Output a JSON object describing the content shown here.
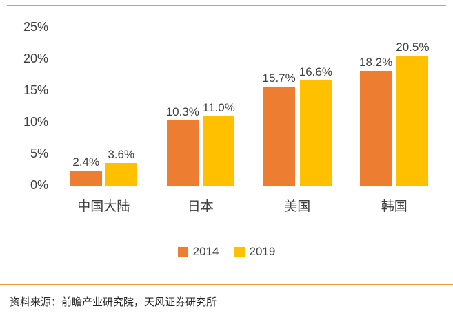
{
  "chart_data": {
    "type": "bar",
    "title": "",
    "categories": [
      "中国大陆",
      "日本",
      "美国",
      "韩国"
    ],
    "series": [
      {
        "name": "2014",
        "color": "#ED7D31",
        "values": [
          2.4,
          10.3,
          15.7,
          18.2
        ],
        "labels": [
          "2.4%",
          "10.3%",
          "15.7%",
          "18.2%"
        ]
      },
      {
        "name": "2019",
        "color": "#FFC000",
        "values": [
          3.6,
          11.0,
          16.6,
          20.5
        ],
        "labels": [
          "3.6%",
          "11.0%",
          "16.6%",
          "20.5%"
        ]
      }
    ],
    "xlabel": "",
    "ylabel": "",
    "ylim": [
      0,
      25
    ],
    "yticks": [
      "0%",
      "5%",
      "10%",
      "15%",
      "20%",
      "25%"
    ],
    "grid": false,
    "legend_position": "bottom",
    "data_labels_shown": true
  },
  "footer": {
    "source": "资料来源：前瞻产业研究院，天风证券研究所"
  },
  "style": {
    "accent_rule_color": "#ED9B33",
    "axis_line_color": "#cfcfcf",
    "background": "#ffffff"
  }
}
